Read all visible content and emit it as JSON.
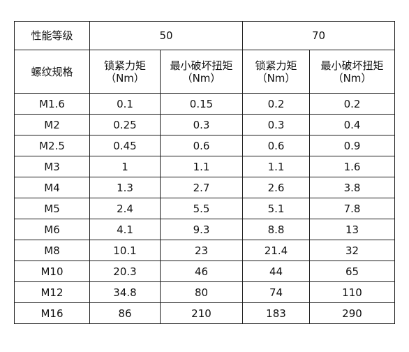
{
  "table": {
    "header1": {
      "grade_label": "性能等级",
      "group_50": "50",
      "group_70": "70"
    },
    "header2": {
      "spec_label": "螺纹规格",
      "col1": [
        "锁紧力矩",
        "（Nm）"
      ],
      "col2": [
        "最小破坏扭矩",
        "（Nm）"
      ],
      "col3": [
        "锁紧力矩",
        "（Nm）"
      ],
      "col4": [
        "最小破坏扭矩",
        "（Nm）"
      ]
    },
    "rows": [
      {
        "spec": "M1.6",
        "v50_lock": "0.1",
        "v50_break": "0.15",
        "v70_lock": "0.2",
        "v70_break": "0.2"
      },
      {
        "spec": "M2",
        "v50_lock": "0.25",
        "v50_break": "0.3",
        "v70_lock": "0.3",
        "v70_break": "0.4"
      },
      {
        "spec": "M2.5",
        "v50_lock": "0.45",
        "v50_break": "0.6",
        "v70_lock": "0.6",
        "v70_break": "0.9"
      },
      {
        "spec": "M3",
        "v50_lock": "1",
        "v50_break": "1.1",
        "v70_lock": "1.1",
        "v70_break": "1.6"
      },
      {
        "spec": "M4",
        "v50_lock": "1.3",
        "v50_break": "2.7",
        "v70_lock": "2.6",
        "v70_break": "3.8"
      },
      {
        "spec": "M5",
        "v50_lock": "2.4",
        "v50_break": "5.5",
        "v70_lock": "5.1",
        "v70_break": "7.8"
      },
      {
        "spec": "M6",
        "v50_lock": "4.1",
        "v50_break": "9.3",
        "v70_lock": "8.8",
        "v70_break": "13"
      },
      {
        "spec": "M8",
        "v50_lock": "10.1",
        "v50_break": "23",
        "v70_lock": "21.4",
        "v70_break": "32"
      },
      {
        "spec": "M10",
        "v50_lock": "20.3",
        "v50_break": "46",
        "v70_lock": "44",
        "v70_break": "65"
      },
      {
        "spec": "M12",
        "v50_lock": "34.8",
        "v50_break": "80",
        "v70_lock": "74",
        "v70_break": "110"
      },
      {
        "spec": "M16",
        "v50_lock": "86",
        "v50_break": "210",
        "v70_lock": "183",
        "v70_break": "290"
      }
    ]
  }
}
